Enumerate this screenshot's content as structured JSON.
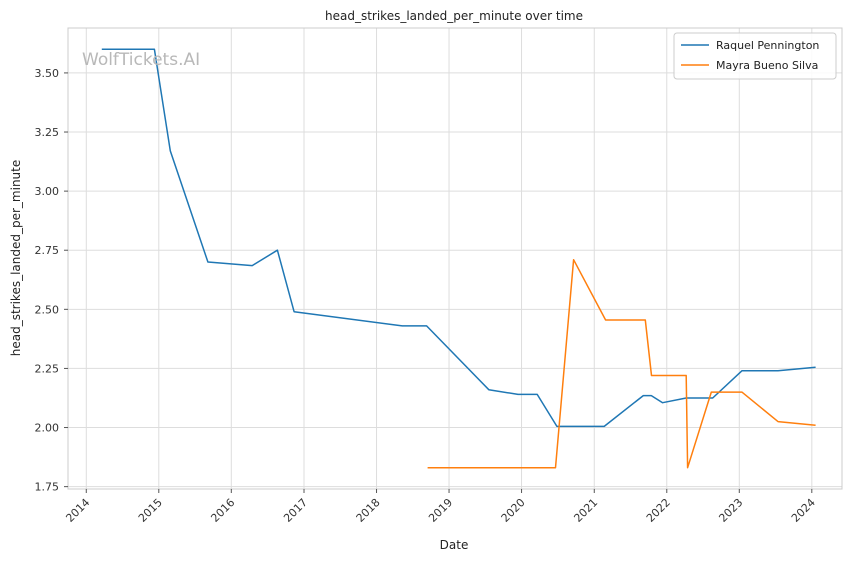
{
  "chart_data": {
    "type": "line",
    "title": "head_strikes_landed_per_minute over time",
    "xlabel": "Date",
    "ylabel": "head_strikes_landed_per_minute",
    "watermark": "WolfTickets.AI",
    "x_ticks": [
      "2014",
      "2015",
      "2016",
      "2017",
      "2018",
      "2019",
      "2020",
      "2021",
      "2022",
      "2023",
      "2024"
    ],
    "y_ticks": [
      "1.75",
      "2.00",
      "2.25",
      "2.50",
      "2.75",
      "3.00",
      "3.25",
      "3.50"
    ],
    "xlim": [
      "2013-10-01",
      "2024-06-01"
    ],
    "ylim": [
      1.74,
      3.69
    ],
    "grid": true,
    "legend_position": "top-right",
    "series": [
      {
        "name": "Raquel Pennington",
        "color": "#1f77b4",
        "points": [
          [
            "2014-03-20",
            3.6
          ],
          [
            "2014-12-10",
            3.6
          ],
          [
            "2015-02-28",
            3.17
          ],
          [
            "2015-09-05",
            2.7
          ],
          [
            "2016-04-15",
            2.685
          ],
          [
            "2016-08-20",
            2.75
          ],
          [
            "2016-11-12",
            2.49
          ],
          [
            "2018-05-10",
            2.43
          ],
          [
            "2018-09-10",
            2.43
          ],
          [
            "2019-07-20",
            2.16
          ],
          [
            "2019-12-14",
            2.14
          ],
          [
            "2020-03-20",
            2.14
          ],
          [
            "2020-06-27",
            2.005
          ],
          [
            "2021-01-20",
            2.005
          ],
          [
            "2021-02-20",
            2.005
          ],
          [
            "2021-09-05",
            2.135
          ],
          [
            "2021-10-15",
            2.135
          ],
          [
            "2021-12-11",
            2.105
          ],
          [
            "2022-04-09",
            2.125
          ],
          [
            "2022-08-20",
            2.125
          ],
          [
            "2023-01-14",
            2.24
          ],
          [
            "2023-07-15",
            2.24
          ],
          [
            "2024-01-20",
            2.255
          ]
        ]
      },
      {
        "name": "Mayra Bueno Silva",
        "color": "#ff7f0e",
        "points": [
          [
            "2018-09-15",
            1.83
          ],
          [
            "2020-06-20",
            1.83
          ],
          [
            "2020-09-19",
            2.71
          ],
          [
            "2021-02-27",
            2.455
          ],
          [
            "2021-09-15",
            2.455
          ],
          [
            "2021-10-16",
            2.22
          ],
          [
            "2022-04-09",
            2.22
          ],
          [
            "2022-04-16",
            1.83
          ],
          [
            "2022-08-13",
            2.15
          ],
          [
            "2023-01-14",
            2.15
          ],
          [
            "2023-07-15",
            2.025
          ],
          [
            "2024-01-20",
            2.01
          ]
        ]
      }
    ]
  }
}
